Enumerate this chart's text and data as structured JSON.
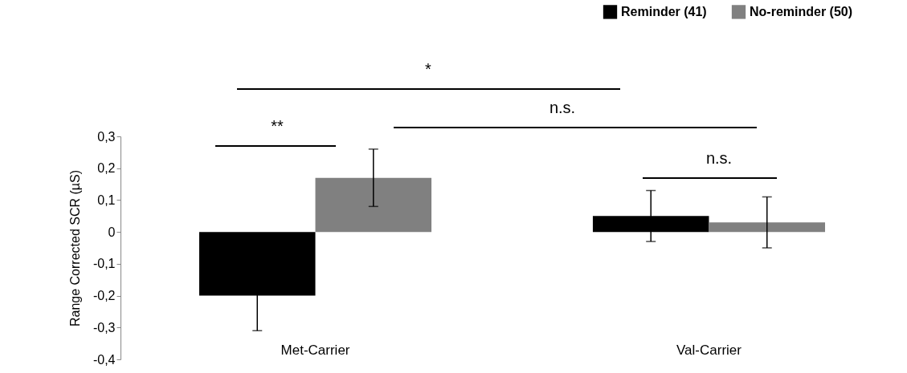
{
  "chart_data": {
    "type": "bar",
    "ylabel": "Range Corrected SCR (µS)",
    "categories": [
      "Met-Carrier",
      "Val-Carrier"
    ],
    "series": [
      {
        "name": "Reminder (41)",
        "color": "#000000",
        "values": [
          -0.2,
          0.05
        ],
        "errors": [
          0.11,
          0.08
        ]
      },
      {
        "name": "No-reminder (50)",
        "color": "#808080",
        "values": [
          0.17,
          0.03
        ],
        "errors": [
          0.09,
          0.08
        ]
      }
    ],
    "ylim": [
      -0.4,
      0.3
    ],
    "yticks": [
      {
        "value": -0.4,
        "label": "-0,4"
      },
      {
        "value": -0.3,
        "label": "-0,3"
      },
      {
        "value": -0.2,
        "label": "-0,2"
      },
      {
        "value": -0.1,
        "label": "-0,1"
      },
      {
        "value": 0,
        "label": "0"
      },
      {
        "value": 0.1,
        "label": "0,1"
      },
      {
        "value": 0.2,
        "label": "0,2"
      },
      {
        "value": 0.3,
        "label": "0,3"
      }
    ],
    "grid": false,
    "legend": "top right",
    "annotations": [
      "*",
      "**",
      "n.s.",
      "n.s."
    ]
  }
}
